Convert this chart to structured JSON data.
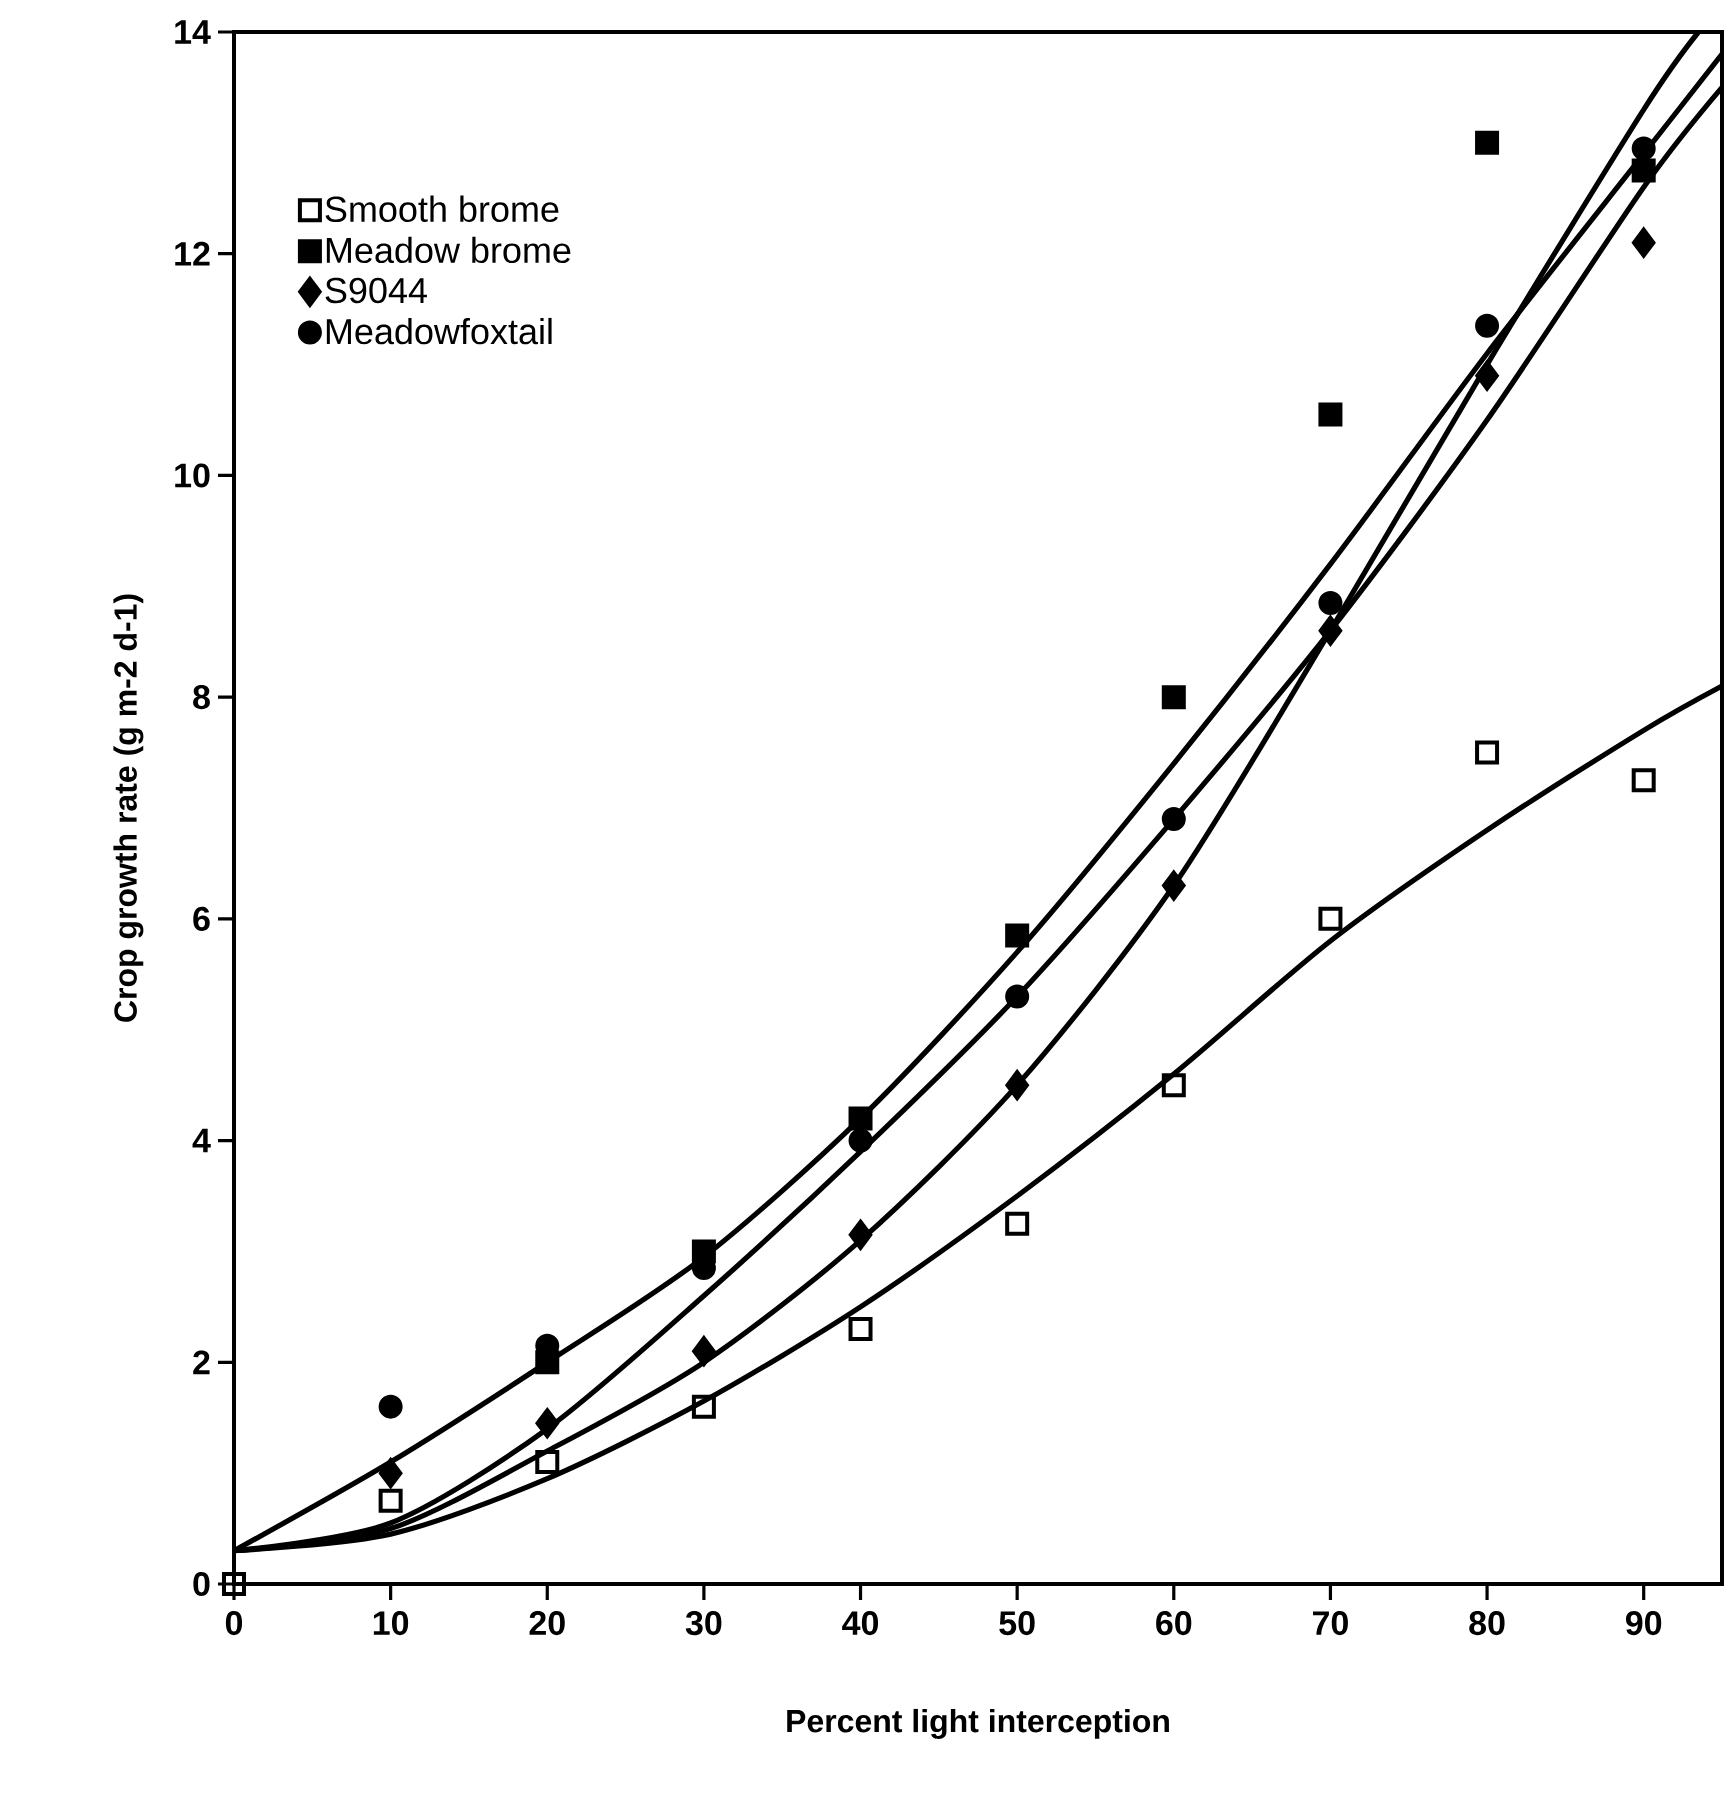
{
  "chart_data": {
    "type": "scatter",
    "xlabel": "Percent light interception",
    "ylabel": "Crop growth rate (g m-2 d-1)",
    "xlim": [
      0,
      95
    ],
    "ylim": [
      0,
      14
    ],
    "xticks": [
      0,
      10,
      20,
      30,
      40,
      50,
      60,
      70,
      80,
      90
    ],
    "yticks": [
      0,
      2,
      4,
      6,
      8,
      10,
      12,
      14
    ],
    "legend": "top left",
    "grid": false,
    "series": [
      {
        "name": "Smooth brome",
        "marker": "square",
        "color": "#000000",
        "x": [
          0,
          10,
          20,
          30,
          40,
          50,
          60,
          70,
          80,
          90
        ],
        "values": [
          0,
          0.75,
          1.1,
          1.6,
          2.3,
          3.25,
          4.5,
          6.0,
          7.5,
          7.25
        ]
      },
      {
        "name": "Meadow brome",
        "marker": "square",
        "color": "#000000",
        "x": [
          20,
          30,
          40,
          50,
          60,
          70,
          80,
          90
        ],
        "values": [
          2.0,
          3.0,
          4.2,
          5.85,
          8.0,
          10.55,
          13.0,
          12.75
        ]
      },
      {
        "name": "S9044",
        "marker": "diamond",
        "color": "#000000",
        "x": [
          10,
          20,
          30,
          40,
          50,
          60,
          70,
          80,
          90
        ],
        "values": [
          1.0,
          1.45,
          2.1,
          3.15,
          4.5,
          6.3,
          8.6,
          10.9,
          12.1
        ]
      },
      {
        "name": "Meadowfoxtail",
        "marker": "circle",
        "color": "#000000",
        "x": [
          10,
          20,
          30,
          40,
          50,
          60,
          70,
          80,
          90
        ],
        "values": [
          1.6,
          2.15,
          2.85,
          4.0,
          5.3,
          6.9,
          8.85,
          11.35,
          12.95
        ]
      },
      {
        "type": "line",
        "marker": "none",
        "color": "#000000",
        "x": [
          0,
          10,
          20,
          30,
          40,
          50,
          60,
          70,
          80,
          90,
          95
        ],
        "values": [
          0.3,
          0.45,
          0.95,
          1.65,
          2.5,
          3.5,
          4.6,
          5.8,
          6.8,
          7.7,
          8.1
        ]
      },
      {
        "type": "line",
        "marker": "none",
        "color": "#000000",
        "x": [
          0,
          10,
          20,
          30,
          40,
          50,
          60,
          70,
          80,
          90,
          95
        ],
        "values": [
          0.3,
          1.1,
          2.0,
          2.95,
          4.2,
          5.7,
          7.4,
          9.2,
          11.1,
          12.9,
          13.8
        ]
      },
      {
        "type": "line",
        "marker": "none",
        "color": "#000000",
        "x": [
          0,
          10,
          20,
          30,
          40,
          50,
          60,
          70,
          80,
          90,
          93.5
        ],
        "values": [
          0.3,
          0.5,
          1.2,
          2.0,
          3.1,
          4.5,
          6.3,
          8.6,
          11.0,
          13.3,
          14.0
        ]
      },
      {
        "type": "line",
        "marker": "none",
        "color": "#000000",
        "x": [
          0,
          10,
          20,
          30,
          40,
          50,
          60,
          70,
          80,
          90,
          95
        ],
        "values": [
          0.3,
          0.55,
          1.4,
          2.6,
          3.9,
          5.3,
          6.9,
          8.6,
          10.5,
          12.6,
          13.5
        ]
      }
    ]
  }
}
